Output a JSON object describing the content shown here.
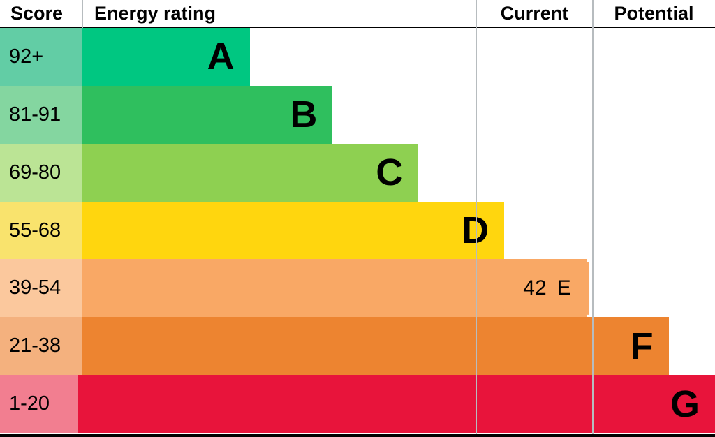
{
  "header": {
    "score": "Score",
    "energy_rating": "Energy rating",
    "current": "Current",
    "potential": "Potential"
  },
  "bands": [
    {
      "range": "92+",
      "letter": "A",
      "bar_color": "#00c781",
      "tint_color": "#62cda5",
      "width_pct": 23.4
    },
    {
      "range": "81-91",
      "letter": "B",
      "bar_color": "#2fbf5e",
      "tint_color": "#84d6a0",
      "width_pct": 35.0
    },
    {
      "range": "69-80",
      "letter": "C",
      "bar_color": "#8ed051",
      "tint_color": "#bbe495",
      "width_pct": 47.0
    },
    {
      "range": "55-68",
      "letter": "D",
      "bar_color": "#ffd60e",
      "tint_color": "#f9e36d",
      "width_pct": 59.0
    },
    {
      "range": "39-54",
      "letter": "E",
      "bar_color": "#f9a865",
      "tint_color": "#fbc89d",
      "width_pct": 70.6
    },
    {
      "range": "21-38",
      "letter": "F",
      "bar_color": "#ed8430",
      "tint_color": "#f4b17e",
      "width_pct": 82.0
    },
    {
      "range": "1-20",
      "letter": "G",
      "bar_color": "#e8143b",
      "tint_color": "#f27e90",
      "width_pct": 94.0
    }
  ],
  "current_marker": {
    "value": "42",
    "letter": "E",
    "color": "#f9a865",
    "band_index": 4
  },
  "chart_data": {
    "type": "bar",
    "title": "Energy rating (EPC band chart)",
    "categories": [
      "A",
      "B",
      "C",
      "D",
      "E",
      "F",
      "G"
    ],
    "score_ranges": [
      "92+",
      "81-91",
      "69-80",
      "55-68",
      "39-54",
      "21-38",
      "1-20"
    ],
    "values": [
      23.4,
      35.0,
      47.0,
      59.0,
      70.6,
      82.0,
      94.0
    ],
    "value_note": "bar length as % of rating column width; bars increase A to G",
    "bar_colors": [
      "#00c781",
      "#2fbf5e",
      "#8ed051",
      "#ffd60e",
      "#f9a865",
      "#ed8430",
      "#e8143b"
    ],
    "columns": [
      "Score",
      "Energy rating",
      "Current",
      "Potential"
    ],
    "current": {
      "score": 42,
      "band": "E"
    },
    "legend": "off",
    "grid": "off"
  }
}
